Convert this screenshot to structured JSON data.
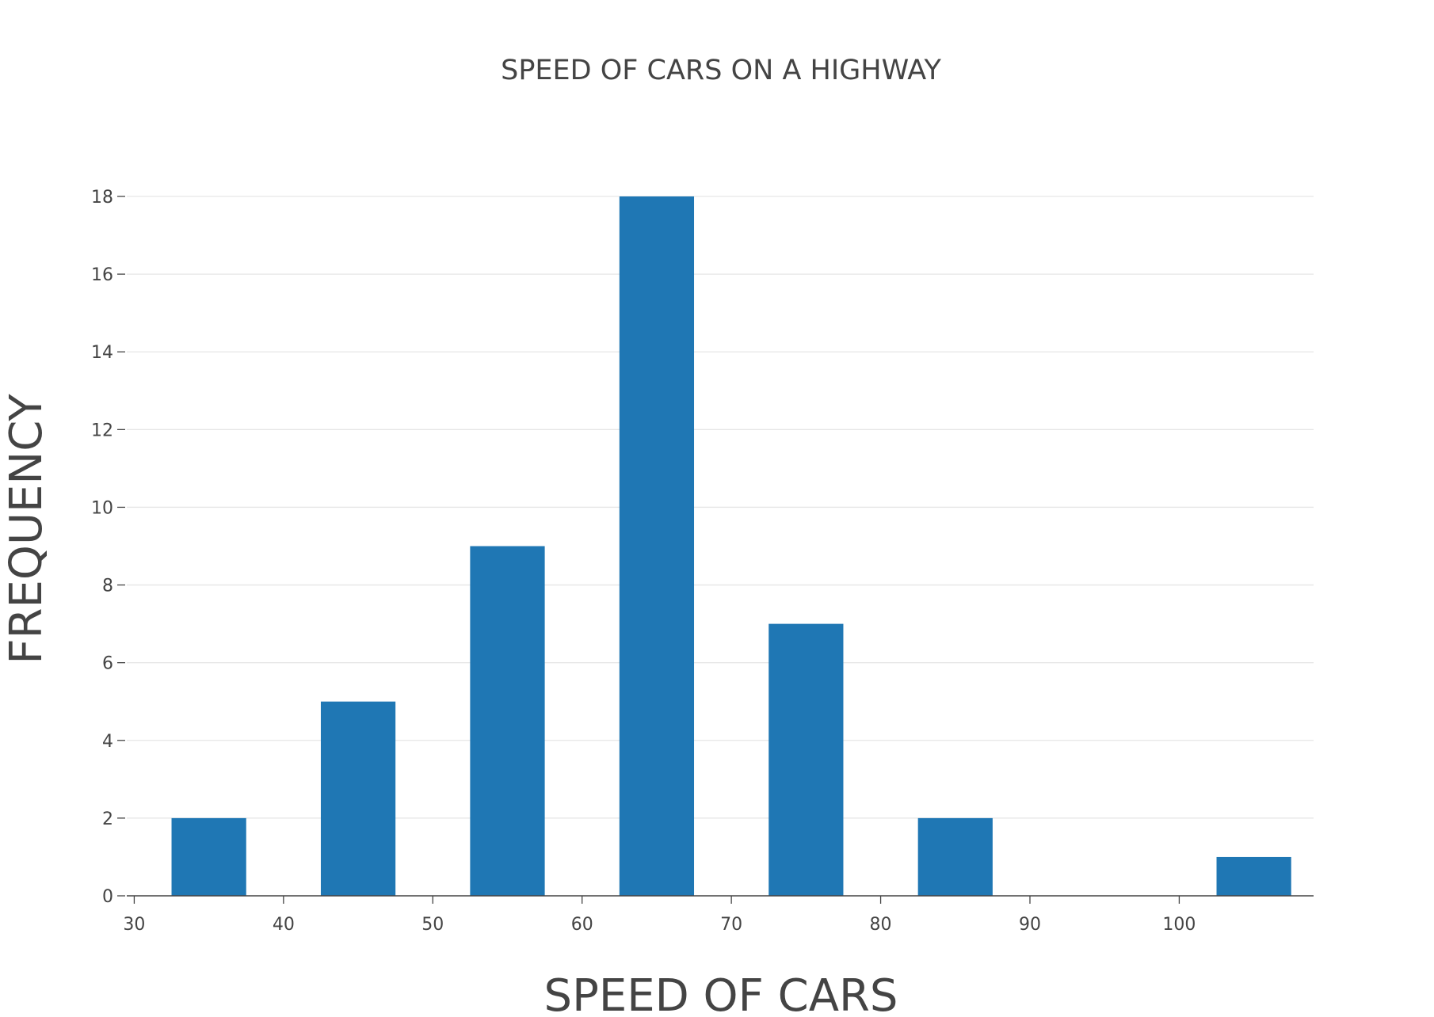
{
  "chart_data": {
    "type": "bar",
    "title": "SPEED OF CARS ON A HIGHWAY",
    "xlabel": "SPEED OF CARS",
    "ylabel": "FREQUENCY",
    "x": [
      35,
      45,
      55,
      65,
      75,
      85,
      95,
      105
    ],
    "values": [
      2,
      5,
      9,
      18,
      7,
      2,
      0,
      1
    ],
    "bar_width": 5,
    "xlim": [
      29.5,
      109
    ],
    "ylim": [
      0,
      18
    ],
    "x_ticks": [
      30,
      40,
      50,
      60,
      70,
      80,
      90,
      100
    ],
    "x_tick_labels": [
      "30",
      "40",
      "50",
      "60",
      "70",
      "80",
      "90",
      "100"
    ],
    "y_ticks": [
      0,
      2,
      4,
      6,
      8,
      10,
      12,
      14,
      16,
      18
    ],
    "y_tick_labels": [
      "0",
      "2",
      "4",
      "6",
      "8",
      "10",
      "12",
      "14",
      "16",
      "18"
    ],
    "grid": true,
    "legend": false,
    "bar_color": "#1f77b4"
  }
}
